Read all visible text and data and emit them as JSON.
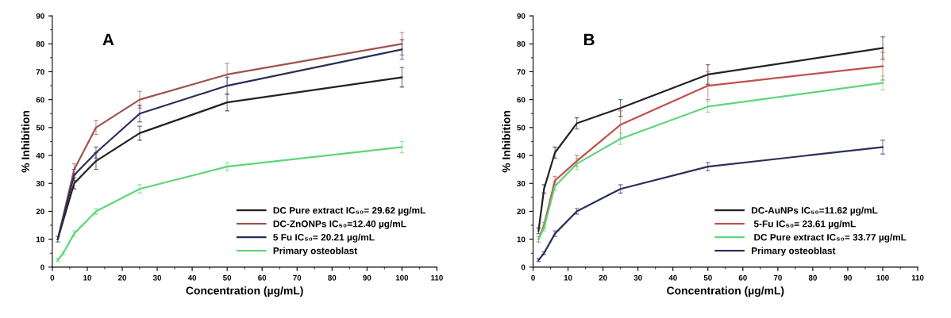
{
  "chart_data": [
    {
      "type": "line",
      "title": "A",
      "xlabel": "Concentration (µg/mL)",
      "ylabel": "% Inhibition",
      "xlim": [
        0,
        110
      ],
      "xticks": [
        0,
        10,
        20,
        30,
        40,
        50,
        60,
        70,
        80,
        90,
        100,
        110
      ],
      "ylim": [
        0,
        90
      ],
      "yticks": [
        0,
        10,
        20,
        30,
        40,
        50,
        60,
        70,
        80,
        90
      ],
      "legend": "bottom right",
      "grid": false,
      "marker": "none",
      "line_style": "solid",
      "series": [
        {
          "name": "DC Pure extract IC₅₀= 29.62 µg/mL",
          "color": "#222222",
          "x": [
            1.56,
            6.25,
            12.5,
            25,
            50,
            100
          ],
          "values": [
            10,
            30,
            38,
            48,
            59,
            68
          ],
          "errors": [
            1,
            2,
            3,
            2.5,
            3,
            3.5
          ]
        },
        {
          "name": "DC-ZnONPs IC₅₀=12.40 µg/mL",
          "color": "#a0524f",
          "x": [
            1.56,
            6.25,
            12.5,
            25,
            50,
            100
          ],
          "values": [
            10,
            35,
            50,
            60,
            69,
            80
          ],
          "errors": [
            null,
            2,
            2.5,
            3,
            4,
            4
          ]
        },
        {
          "name": "5 Fu IC₅₀= 20.21 µg/mL",
          "color": "#2b2f5a",
          "x": [
            1.56,
            6.25,
            12.5,
            25,
            50,
            100
          ],
          "values": [
            10,
            33,
            41,
            55,
            65,
            78
          ],
          "errors": [
            null,
            2,
            2,
            3,
            3,
            3.5
          ]
        },
        {
          "name": "Primary osteoblast",
          "color": "#5ed67a",
          "x": [
            1.56,
            3.125,
            6.25,
            12.5,
            25,
            50,
            100
          ],
          "values": [
            2.5,
            5,
            12,
            20,
            28,
            36,
            43
          ],
          "errors": [
            0.5,
            0.5,
            1,
            1,
            1.5,
            1.5,
            2
          ]
        }
      ]
    },
    {
      "type": "line",
      "title": "B",
      "xlabel": "Concentration (µg/mL)",
      "ylabel": "% Inhibition",
      "xlim": [
        0,
        110
      ],
      "xticks": [
        0,
        10,
        20,
        30,
        40,
        50,
        60,
        70,
        80,
        90,
        100,
        110
      ],
      "ylim": [
        0,
        90
      ],
      "yticks": [
        0,
        10,
        20,
        30,
        40,
        50,
        60,
        70,
        80,
        90
      ],
      "legend": "bottom right",
      "grid": false,
      "marker": "none",
      "line_style": "solid",
      "series": [
        {
          "name": "DC-AuNPs IC₅₀=11.62 µg/mL",
          "color": "#222222",
          "x": [
            1.56,
            3.125,
            6.25,
            12.5,
            25,
            50,
            100
          ],
          "values": [
            13,
            28,
            41,
            51.5,
            57,
            69,
            78.5
          ],
          "errors": [
            1,
            1.5,
            2,
            2,
            3,
            3.5,
            4
          ]
        },
        {
          "name": " 5-Fu IC₅₀= 23.61 µg/mL",
          "color": "#c0504d",
          "x": [
            1.56,
            3.125,
            6.25,
            12.5,
            25,
            50,
            100
          ],
          "values": [
            10,
            15,
            31,
            38,
            51,
            65,
            72
          ],
          "errors": [
            1,
            1,
            1.5,
            2,
            5,
            5,
            5
          ]
        },
        {
          "name": " DC Pure extract IC₅₀= 33.77 µg/mL",
          "color": "#5ed67a",
          "x": [
            1.56,
            3.125,
            6.25,
            12.5,
            25,
            50,
            100
          ],
          "values": [
            10,
            14,
            29,
            37,
            46,
            57.5,
            66
          ],
          "errors": [
            null,
            1,
            1.5,
            2,
            2,
            2,
            2.5
          ]
        },
        {
          "name": "Primary osteoblast",
          "color": "#2b2f5a",
          "x": [
            1.56,
            3.125,
            6.25,
            12.5,
            25,
            50,
            100
          ],
          "values": [
            2.5,
            5,
            12,
            20,
            28,
            36,
            43
          ],
          "errors": [
            0.5,
            0.5,
            1,
            1,
            1.5,
            1.5,
            2.5
          ]
        }
      ]
    }
  ]
}
